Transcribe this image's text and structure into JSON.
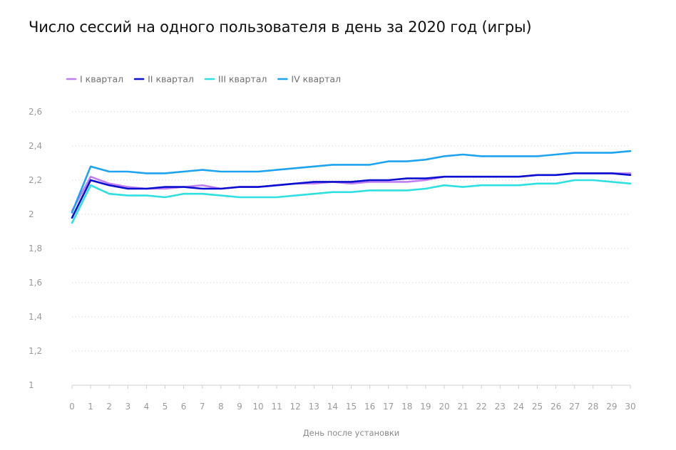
{
  "chart_data": {
    "type": "line",
    "title": "Число сессий на одного пользователя в день за 2020 год (игры)",
    "xlabel": "День после установки",
    "ylabel": "",
    "x": [
      0,
      1,
      2,
      3,
      4,
      5,
      6,
      7,
      8,
      9,
      10,
      11,
      12,
      13,
      14,
      15,
      16,
      17,
      18,
      19,
      20,
      21,
      22,
      23,
      24,
      25,
      26,
      27,
      28,
      29,
      30
    ],
    "x_tick_labels": [
      "0",
      "1",
      "2",
      "3",
      "4",
      "5",
      "6",
      "7",
      "8",
      "9",
      "10",
      "11",
      "12",
      "13",
      "14",
      "15",
      "16",
      "17",
      "18",
      "19",
      "20",
      "21",
      "22",
      "23",
      "24",
      "25",
      "26",
      "27",
      "28",
      "29",
      "30"
    ],
    "ylim": [
      1,
      2.6
    ],
    "y_ticks": [
      1,
      1.2,
      1.4,
      1.6,
      1.8,
      2,
      2.2,
      2.4,
      2.6
    ],
    "y_tick_labels": [
      "1",
      "1,2",
      "1,4",
      "1,6",
      "1,8",
      "2",
      "2,2",
      "2,4",
      "2,6"
    ],
    "grid": true,
    "legend_position": "top-left",
    "series": [
      {
        "name": "I квартал",
        "color": "#c07ff0",
        "values": [
          2.02,
          2.22,
          2.18,
          2.16,
          2.15,
          2.15,
          2.16,
          2.17,
          2.15,
          2.16,
          2.16,
          2.17,
          2.18,
          2.18,
          2.19,
          2.18,
          2.19,
          2.19,
          2.19,
          2.2,
          2.22,
          2.22,
          2.22,
          2.22,
          2.22,
          2.23,
          2.23,
          2.24,
          2.24,
          2.24,
          2.24
        ]
      },
      {
        "name": "II квартал",
        "color": "#0a0fd0",
        "values": [
          1.98,
          2.2,
          2.17,
          2.15,
          2.15,
          2.16,
          2.16,
          2.15,
          2.15,
          2.16,
          2.16,
          2.17,
          2.18,
          2.19,
          2.19,
          2.19,
          2.2,
          2.2,
          2.21,
          2.21,
          2.22,
          2.22,
          2.22,
          2.22,
          2.22,
          2.23,
          2.23,
          2.24,
          2.24,
          2.24,
          2.23
        ]
      },
      {
        "name": "III квартал",
        "color": "#2ee0e0",
        "values": [
          1.95,
          2.17,
          2.12,
          2.11,
          2.11,
          2.1,
          2.12,
          2.12,
          2.11,
          2.1,
          2.1,
          2.1,
          2.11,
          2.12,
          2.13,
          2.13,
          2.14,
          2.14,
          2.14,
          2.15,
          2.17,
          2.16,
          2.17,
          2.17,
          2.17,
          2.18,
          2.18,
          2.2,
          2.2,
          2.19,
          2.18
        ]
      },
      {
        "name": "IV квартал",
        "color": "#1ea3f0",
        "values": [
          2.01,
          2.28,
          2.25,
          2.25,
          2.24,
          2.24,
          2.25,
          2.26,
          2.25,
          2.25,
          2.25,
          2.26,
          2.27,
          2.28,
          2.29,
          2.29,
          2.29,
          2.31,
          2.31,
          2.32,
          2.34,
          2.35,
          2.34,
          2.34,
          2.34,
          2.34,
          2.35,
          2.36,
          2.36,
          2.36,
          2.37
        ]
      }
    ]
  }
}
